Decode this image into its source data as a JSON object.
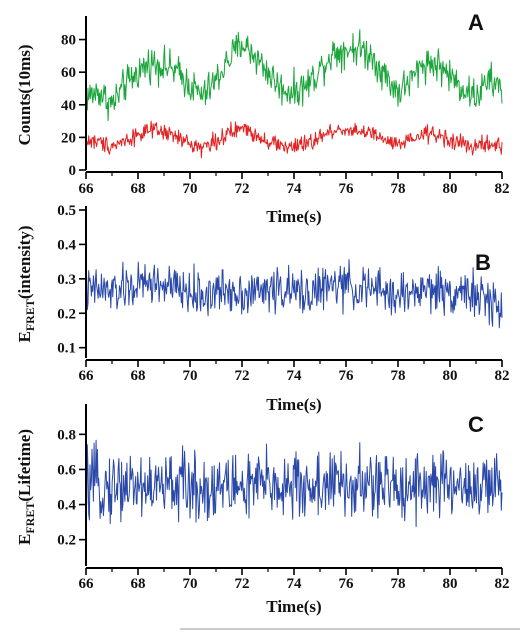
{
  "chart_data": [
    {
      "type": "line",
      "panel_label": "A",
      "xlabel": "Time(s)",
      "ylabel": "Counts(10ms)",
      "xlim": [
        66,
        82
      ],
      "ylim": [
        0,
        92
      ],
      "xticks": [
        66,
        68,
        70,
        72,
        74,
        76,
        78,
        80,
        82
      ],
      "yticks": [
        0,
        20,
        40,
        60,
        80
      ],
      "series": [
        {
          "color": "#1aa53a",
          "x": [
            66.0,
            66.5,
            67.0,
            67.5,
            68.0,
            68.5,
            69.0,
            69.5,
            70.0,
            70.5,
            71.0,
            71.5,
            72.0,
            72.5,
            73.0,
            73.5,
            74.0,
            74.5,
            75.0,
            75.5,
            76.0,
            76.5,
            77.0,
            77.5,
            78.0,
            78.5,
            79.0,
            79.5,
            80.0,
            80.5,
            81.0,
            81.5,
            82.0
          ],
          "values": [
            45,
            48,
            40,
            52,
            60,
            66,
            64,
            60,
            52,
            45,
            55,
            68,
            78,
            70,
            60,
            50,
            48,
            52,
            62,
            72,
            74,
            75,
            70,
            58,
            48,
            55,
            66,
            65,
            58,
            50,
            45,
            55,
            50
          ]
        },
        {
          "color": "#e32222",
          "x": [
            66.0,
            66.5,
            67.0,
            67.5,
            68.0,
            68.5,
            69.0,
            69.5,
            70.0,
            70.5,
            71.0,
            71.5,
            72.0,
            72.5,
            73.0,
            73.5,
            74.0,
            74.5,
            75.0,
            75.5,
            76.0,
            76.5,
            77.0,
            77.5,
            78.0,
            78.5,
            79.0,
            79.5,
            80.0,
            80.5,
            81.0,
            81.5,
            82.0
          ],
          "values": [
            18,
            17,
            15,
            18,
            22,
            24,
            23,
            20,
            16,
            14,
            18,
            22,
            26,
            22,
            18,
            15,
            14,
            16,
            20,
            24,
            25,
            24,
            22,
            18,
            15,
            18,
            22,
            22,
            18,
            16,
            14,
            16,
            14
          ]
        }
      ]
    },
    {
      "type": "line",
      "panel_label": "B",
      "xlabel": "Time(s)",
      "ylabel": "EFRET(intensity)",
      "ylabel_main": "E",
      "ylabel_sub": "FRET",
      "ylabel_rest": "(intensity)",
      "xlim": [
        66,
        82
      ],
      "ylim": [
        0.07,
        0.5
      ],
      "xticks": [
        66,
        68,
        70,
        72,
        74,
        76,
        78,
        80,
        82
      ],
      "yticks": [
        0.1,
        0.2,
        0.3,
        0.4,
        0.5
      ],
      "series": [
        {
          "color": "#2948a8",
          "x": [
            66.0,
            66.5,
            67.0,
            67.5,
            68.0,
            68.5,
            69.0,
            69.5,
            70.0,
            70.5,
            71.0,
            71.5,
            72.0,
            72.5,
            73.0,
            73.5,
            74.0,
            74.5,
            75.0,
            75.5,
            76.0,
            76.5,
            77.0,
            77.5,
            78.0,
            78.5,
            79.0,
            79.5,
            80.0,
            80.5,
            81.0,
            81.5,
            82.0
          ],
          "values": [
            0.26,
            0.27,
            0.26,
            0.27,
            0.28,
            0.29,
            0.28,
            0.27,
            0.26,
            0.25,
            0.26,
            0.27,
            0.26,
            0.26,
            0.27,
            0.27,
            0.26,
            0.26,
            0.27,
            0.28,
            0.28,
            0.27,
            0.27,
            0.26,
            0.25,
            0.26,
            0.27,
            0.27,
            0.26,
            0.27,
            0.25,
            0.23,
            0.22
          ]
        }
      ]
    },
    {
      "type": "line",
      "panel_label": "C",
      "xlabel": "Time(s)",
      "ylabel": "EFRET(Lifetime)",
      "ylabel_main": "E",
      "ylabel_sub": "FRET",
      "ylabel_rest": "(Lifetime)",
      "xlim": [
        66,
        82
      ],
      "ylim": [
        0.05,
        0.95
      ],
      "xticks": [
        66,
        68,
        70,
        72,
        74,
        76,
        78,
        80,
        82
      ],
      "yticks": [
        0.2,
        0.4,
        0.6,
        0.8
      ],
      "series": [
        {
          "color": "#2948a8",
          "x": [
            66.0,
            66.5,
            67.0,
            67.5,
            68.0,
            68.5,
            69.0,
            69.5,
            70.0,
            70.5,
            71.0,
            71.5,
            72.0,
            72.5,
            73.0,
            73.5,
            74.0,
            74.5,
            75.0,
            75.5,
            76.0,
            76.5,
            77.0,
            77.5,
            78.0,
            78.5,
            79.0,
            79.5,
            80.0,
            80.5,
            81.0,
            81.5,
            82.0
          ],
          "values": [
            0.5,
            0.51,
            0.5,
            0.52,
            0.51,
            0.5,
            0.5,
            0.52,
            0.5,
            0.49,
            0.5,
            0.51,
            0.5,
            0.5,
            0.52,
            0.51,
            0.5,
            0.5,
            0.51,
            0.52,
            0.5,
            0.5,
            0.51,
            0.5,
            0.5,
            0.52,
            0.52,
            0.51,
            0.5,
            0.52,
            0.5,
            0.49,
            0.5
          ]
        }
      ]
    }
  ]
}
